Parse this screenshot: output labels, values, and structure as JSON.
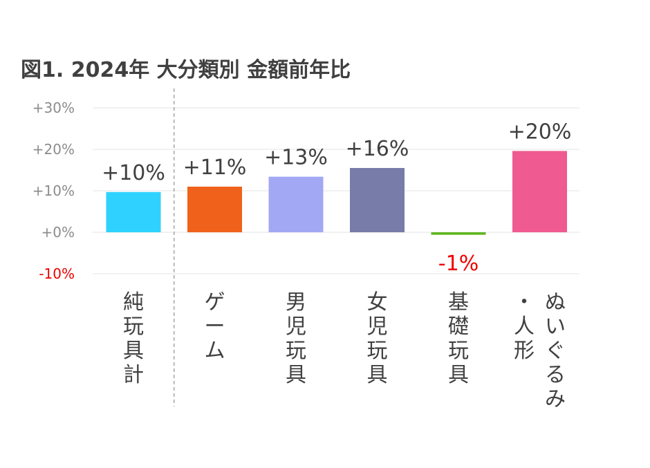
{
  "chart_data": {
    "type": "bar",
    "title": "図1. 2024年  大分類別  金額前年比",
    "categories": [
      [
        "純",
        "玩",
        "具",
        "計"
      ],
      [
        "ゲ",
        "ー",
        "ム"
      ],
      [
        "男",
        "児",
        "玩",
        "具"
      ],
      [
        "女",
        "児",
        "玩",
        "具"
      ],
      [
        "基",
        "礎",
        "玩",
        "具"
      ],
      [
        "ぬ",
        "い",
        "ぐ",
        "る",
        "み",
        "・",
        "人",
        "形"
      ]
    ],
    "values": [
      9.7,
      11.0,
      13.4,
      15.5,
      -0.6,
      19.6
    ],
    "data_labels": [
      "+10%",
      "+11%",
      "+13%",
      "+16%",
      "-1%",
      "+20%"
    ],
    "colors": [
      "#2fd2ff",
      "#f0621b",
      "#a3a8f4",
      "#787ca8",
      "#5fb41e",
      "#ef5a91"
    ],
    "negative_label_color": "#ee0000",
    "ylim": [
      -10,
      30
    ],
    "yticks": [
      30,
      20,
      10,
      0,
      -10
    ],
    "ytick_labels": [
      "+30%",
      "+20%",
      "+10%",
      "+0%",
      "-10%"
    ],
    "grid": true,
    "separator_after_index": 0
  }
}
